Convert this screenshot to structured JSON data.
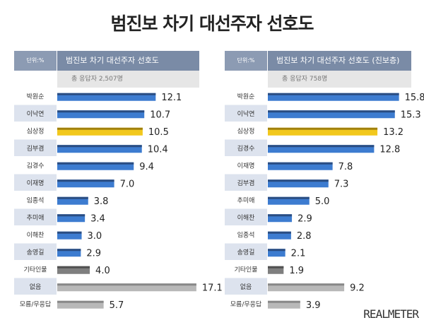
{
  "title": "범진보 차기 대선주자 선호도",
  "logo": "REALMETER",
  "colors": {
    "blue": "#3d7cd0",
    "blue_dark": "#2a4d82",
    "yellow": "#f2c81d",
    "yellow_dark": "#a0800e",
    "dark_gray": "#7f7f7f",
    "dark_gray_top": "#505050",
    "light_gray": "#b8b8b8",
    "light_gray_top": "#888888",
    "label_bg_even": "#ffffff",
    "label_bg_odd": "#dde3ee"
  },
  "chart_data": [
    {
      "type": "bar",
      "unit_label": "단위:%",
      "title": "범진보 차기 대선주자 선호도",
      "subtitle": "총 응답자 2,507명",
      "categories": [
        "박원순",
        "이낙연",
        "심상정",
        "김부겸",
        "김경수",
        "이재명",
        "임종석",
        "추미애",
        "이해찬",
        "송영길",
        "기타인물",
        "없음",
        "모름/무응답"
      ],
      "values": [
        12.1,
        10.7,
        10.5,
        10.4,
        9.4,
        7.0,
        3.8,
        3.4,
        3.0,
        2.9,
        4.0,
        17.1,
        5.7
      ],
      "value_labels": [
        "12.1",
        "10.7",
        "10.5",
        "10.4",
        "9.4",
        "7.0",
        "3.8",
        "3.4",
        "3.0",
        "2.9",
        "4.0",
        "17.1",
        "5.7"
      ],
      "bar_colors": [
        "blue",
        "blue",
        "yellow",
        "blue",
        "blue",
        "blue",
        "blue",
        "blue",
        "blue",
        "blue",
        "dark_gray",
        "light_gray",
        "light_gray"
      ],
      "xlim": [
        0,
        18.5
      ]
    },
    {
      "type": "bar",
      "unit_label": "단위:%",
      "title": "범진보 차기 대선주자 선호도 (진보층)",
      "subtitle": "총 응답자 758명",
      "categories": [
        "박원순",
        "이낙연",
        "심상정",
        "김경수",
        "이재명",
        "김부겸",
        "추미애",
        "이해찬",
        "임종석",
        "송영길",
        "기타인물",
        "없음",
        "모름/무응답"
      ],
      "values": [
        15.8,
        15.3,
        13.2,
        12.8,
        7.8,
        7.3,
        5.0,
        2.9,
        2.8,
        2.1,
        1.9,
        9.2,
        3.9
      ],
      "value_labels": [
        "15.8",
        "15.3",
        "13.2",
        "12.8",
        "7.8",
        "7.3",
        "5.0",
        "2.9",
        "2.8",
        "2.1",
        "1.9",
        "9.2",
        "3.9"
      ],
      "bar_colors": [
        "blue",
        "blue",
        "yellow",
        "blue",
        "blue",
        "blue",
        "blue",
        "blue",
        "blue",
        "blue",
        "dark_gray",
        "light_gray",
        "light_gray"
      ],
      "xlim": [
        0,
        18.3
      ]
    }
  ]
}
